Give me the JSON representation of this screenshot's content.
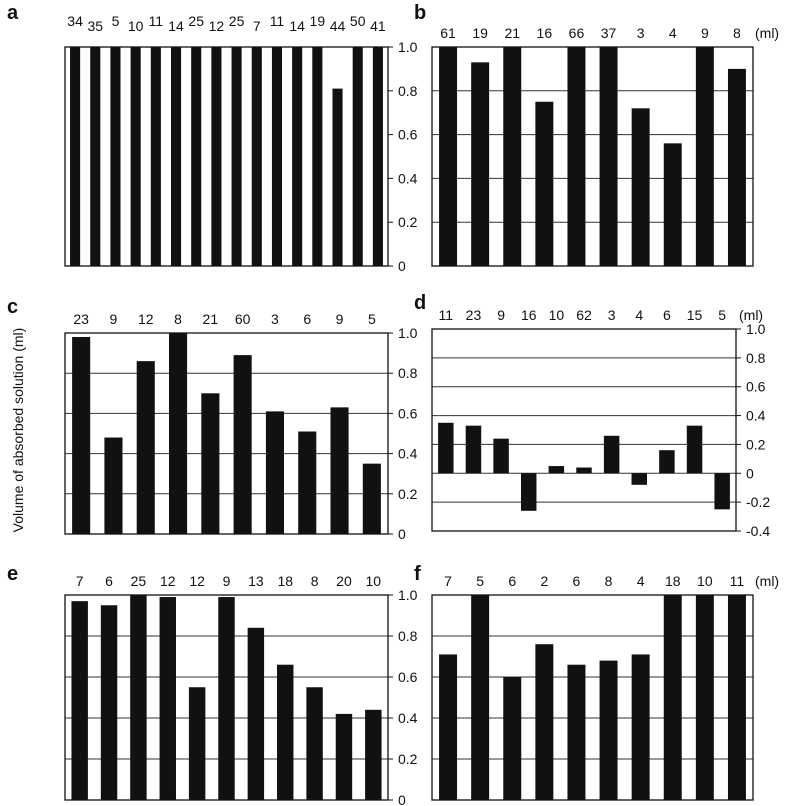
{
  "shared_ylabel": "Volume of absorbed solution (ml)",
  "unit_label": "(ml)",
  "chart_data": [
    {
      "panel": "a",
      "type": "bar",
      "ylim": [
        0,
        1.0
      ],
      "ytick_labels": [
        "0",
        "0.2",
        "0.4",
        "0.6",
        "0.8",
        "1.0"
      ],
      "top_labels": [
        "34",
        "35",
        "5",
        "10",
        "11",
        "14",
        "25",
        "12",
        "25",
        "7",
        "11",
        "14",
        "19",
        "44",
        "50",
        "41"
      ],
      "values": [
        1,
        1,
        1,
        1,
        1,
        1,
        1,
        1,
        1,
        1,
        1,
        1,
        1,
        0.81,
        1,
        1
      ],
      "grid": false,
      "show_unit": false
    },
    {
      "panel": "b",
      "type": "bar",
      "ylim": [
        0,
        1.0
      ],
      "ytick_labels": [],
      "top_labels": [
        "61",
        "19",
        "21",
        "16",
        "66",
        "37",
        "3",
        "4",
        "9",
        "8"
      ],
      "values": [
        1,
        0.93,
        1,
        0.75,
        1,
        1,
        0.72,
        0.56,
        1,
        0.9
      ],
      "grid": true,
      "show_unit": true
    },
    {
      "panel": "c",
      "type": "bar",
      "ylim": [
        0,
        1.0
      ],
      "ytick_labels": [
        "0",
        "0.2",
        "0.4",
        "0.6",
        "0.8",
        "1.0"
      ],
      "top_labels": [
        "23",
        "9",
        "12",
        "8",
        "21",
        "60",
        "3",
        "6",
        "9",
        "5"
      ],
      "values": [
        0.98,
        0.48,
        0.86,
        1,
        0.7,
        0.89,
        0.61,
        0.51,
        0.63,
        0.35
      ],
      "grid": true,
      "show_unit": false
    },
    {
      "panel": "d",
      "type": "bar",
      "ylim": [
        -0.4,
        1.0
      ],
      "ytick_labels": [
        "-0.4",
        "-0.2",
        "0",
        "0.2",
        "0.4",
        "0.6",
        "0.8",
        "1.0"
      ],
      "top_labels": [
        "11",
        "23",
        "9",
        "16",
        "10",
        "62",
        "3",
        "4",
        "6",
        "15",
        "5"
      ],
      "values": [
        0.35,
        0.33,
        0.24,
        -0.26,
        0.05,
        0.04,
        0.26,
        -0.08,
        0.16,
        0.33,
        -0.25
      ],
      "grid": true,
      "show_unit": true
    },
    {
      "panel": "e",
      "type": "bar",
      "ylim": [
        0,
        1.0
      ],
      "ytick_labels": [
        "0",
        "0.2",
        "0.4",
        "0.6",
        "0.8",
        "1.0"
      ],
      "top_labels": [
        "7",
        "6",
        "25",
        "12",
        "12",
        "9",
        "13",
        "18",
        "8",
        "20",
        "10"
      ],
      "values": [
        0.97,
        0.95,
        1,
        0.99,
        0.55,
        0.99,
        0.84,
        0.66,
        0.55,
        0.42,
        0.44
      ],
      "grid": true,
      "show_unit": false
    },
    {
      "panel": "f",
      "type": "bar",
      "ylim": [
        0,
        1.0
      ],
      "ytick_labels": [],
      "top_labels": [
        "7",
        "5",
        "6",
        "2",
        "6",
        "8",
        "4",
        "18",
        "10",
        "11"
      ],
      "values": [
        0.71,
        1,
        0.6,
        0.76,
        0.66,
        0.68,
        0.71,
        1,
        1,
        1
      ],
      "grid": true,
      "show_unit": true
    }
  ]
}
